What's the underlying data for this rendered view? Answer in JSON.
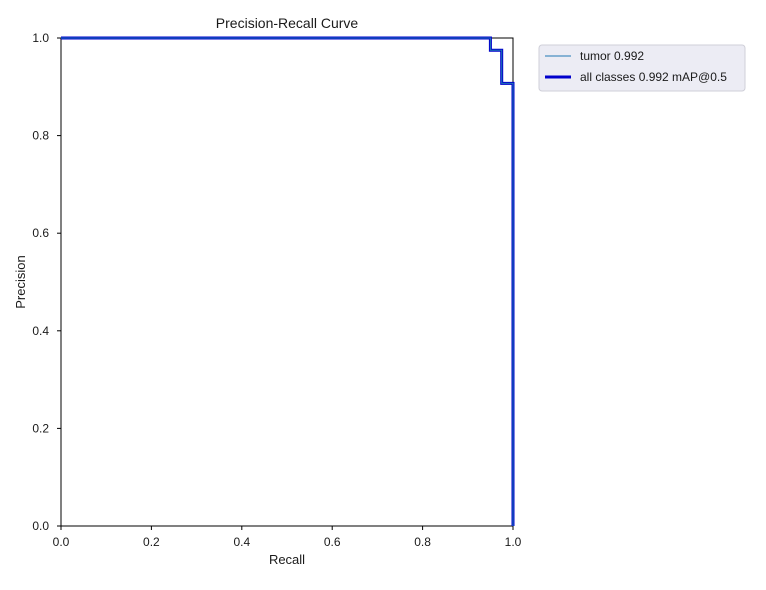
{
  "chart_data": {
    "type": "line",
    "title": "Precision-Recall Curve",
    "xlabel": "Recall",
    "ylabel": "Precision",
    "xlim": [
      0.0,
      1.0
    ],
    "ylim": [
      0.0,
      1.0
    ],
    "x_ticks": [
      0.0,
      0.2,
      0.4,
      0.6,
      0.8,
      1.0
    ],
    "y_ticks": [
      0.0,
      0.2,
      0.4,
      0.6,
      0.8,
      1.0
    ],
    "x_tick_labels": [
      "0.0",
      "0.2",
      "0.4",
      "0.6",
      "0.8",
      "1.0"
    ],
    "y_tick_labels": [
      "0.0",
      "0.2",
      "0.4",
      "0.6",
      "0.8",
      "1.0"
    ],
    "grid": false,
    "legend_position": "outside top-right",
    "series": [
      {
        "name": "tumor 0.992",
        "color": "#1f77b4",
        "style": "thin",
        "x": [
          0.0,
          0.95,
          0.95,
          0.975,
          0.975,
          1.0,
          1.0
        ],
        "y": [
          1.0,
          1.0,
          0.975,
          0.975,
          0.907,
          0.907,
          0.0
        ]
      },
      {
        "name": "all classes 0.992 mAP@0.5",
        "color": "#0000cc",
        "style": "thick",
        "x": [
          0.0,
          0.95,
          0.95,
          0.975,
          0.975,
          1.0,
          1.0
        ],
        "y": [
          1.0,
          1.0,
          0.975,
          0.975,
          0.907,
          0.907,
          0.0
        ]
      }
    ]
  }
}
